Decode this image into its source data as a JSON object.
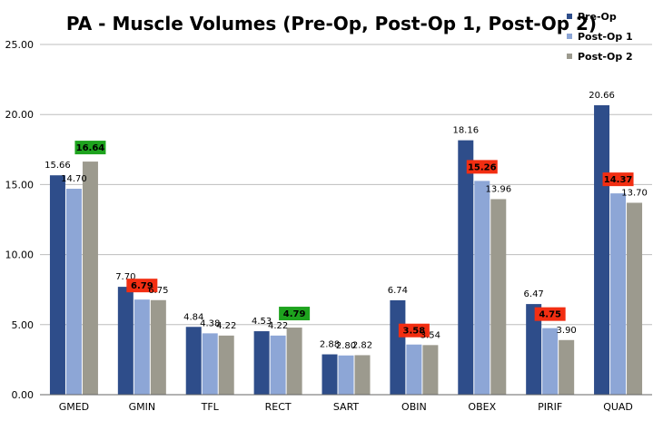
{
  "chart_data": {
    "type": "bar",
    "title": "PA - Muscle Volumes (Pre-Op, Post-Op 1, Post-Op 2)",
    "xlabel": "",
    "ylabel": "",
    "ylim": [
      0,
      25
    ],
    "yticks": [
      "0.00",
      "5.00",
      "10.00",
      "15.00",
      "20.00",
      "25.00"
    ],
    "grid": true,
    "legend_position": "top-right",
    "categories": [
      "GMED",
      "GMIN",
      "TFL",
      "RECT",
      "SART",
      "OBIN",
      "OBEX",
      "PIRIF",
      "QUAD"
    ],
    "series": [
      {
        "name": "Pre-Op",
        "color": "#2e4d8a",
        "values": [
          15.66,
          7.7,
          4.84,
          4.53,
          2.88,
          6.74,
          18.16,
          6.47,
          20.66
        ],
        "labels": [
          "15.66",
          "7.70",
          "4.84",
          "4.53",
          "2.88",
          "6.74",
          "18.16",
          "6.47",
          "20.66"
        ]
      },
      {
        "name": "Post-Op 1",
        "color": "#8da6d6",
        "values": [
          14.7,
          6.79,
          4.38,
          4.22,
          2.8,
          3.58,
          15.26,
          4.75,
          14.37
        ],
        "labels": [
          "14.70",
          "6.79",
          "4.38",
          "4.22",
          "2.80",
          "3.58",
          "15.26",
          "4.75",
          "14.37"
        ]
      },
      {
        "name": "Post-Op 2",
        "color": "#9c9a8e",
        "values": [
          16.64,
          6.75,
          4.22,
          4.79,
          2.82,
          3.54,
          13.96,
          3.9,
          13.7
        ],
        "labels": [
          "16.64",
          "6.75",
          "4.22",
          "4.79",
          "2.82",
          "3.54",
          "13.96",
          "3.90",
          "13.70"
        ]
      }
    ],
    "highlights": [
      {
        "category": "GMED",
        "series": "Post-Op 2",
        "color": "#1ea31e"
      },
      {
        "category": "GMIN",
        "series": "Post-Op 1",
        "color": "#f22e12"
      },
      {
        "category": "RECT",
        "series": "Post-Op 2",
        "color": "#1ea31e"
      },
      {
        "category": "OBIN",
        "series": "Post-Op 1",
        "color": "#f22e12"
      },
      {
        "category": "OBEX",
        "series": "Post-Op 1",
        "color": "#f22e12"
      },
      {
        "category": "PIRIF",
        "series": "Post-Op 1",
        "color": "#f22e12"
      },
      {
        "category": "QUAD",
        "series": "Post-Op 1",
        "color": "#f22e12"
      }
    ]
  }
}
